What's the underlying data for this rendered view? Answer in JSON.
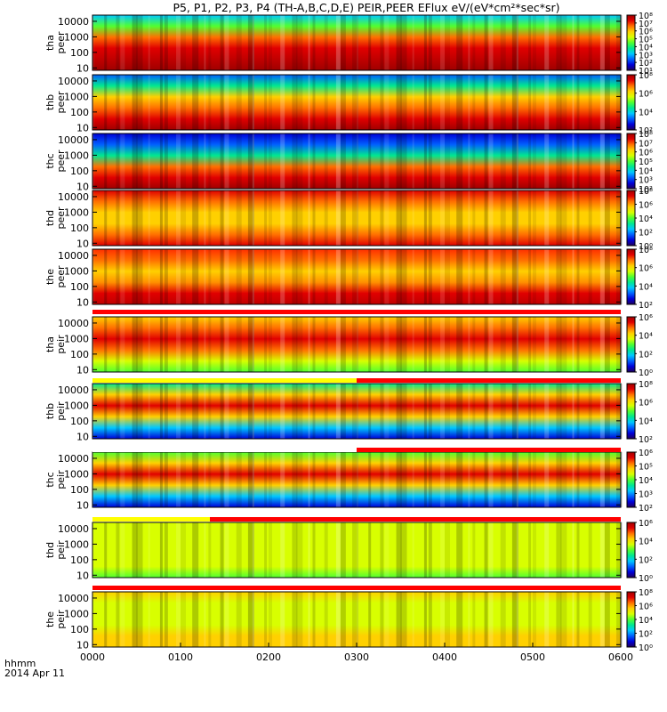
{
  "chart_data": {
    "type": "heatmap",
    "title": "P5, P1, P2, P3, P4 (TH-A,B,C,D,E) PEIR,PEER EFlux eV/(eV*cm²*sec*sr)",
    "xlabel": "hhmm",
    "date_label": "2014 Apr 11",
    "x_ticks": [
      "0000",
      "0100",
      "0200",
      "0300",
      "0400",
      "0500",
      "0600"
    ],
    "x_range_min": [
      0,
      360
    ],
    "y_scale": "log",
    "y_range_eV": [
      7,
      25000
    ],
    "y_ticks": [
      "10",
      "100",
      "1000",
      "10000"
    ],
    "panels": [
      {
        "probe": "tha",
        "species": "peer",
        "cbar": [
          "10¹",
          "10²",
          "10³",
          "10⁴",
          "10⁵",
          "10⁶",
          "10⁷",
          "10⁸"
        ]
      },
      {
        "probe": "thb",
        "species": "peer",
        "cbar": [
          "10²",
          "10⁴",
          "10⁶",
          "10⁸"
        ]
      },
      {
        "probe": "thc",
        "species": "peer",
        "cbar": [
          "10²",
          "10³",
          "10⁴",
          "10⁵",
          "10⁶",
          "10⁷",
          "10⁸"
        ]
      },
      {
        "probe": "thd",
        "species": "peer",
        "cbar": [
          "10⁰",
          "10²",
          "10⁴",
          "10⁶",
          "10⁸"
        ]
      },
      {
        "probe": "the",
        "species": "peer",
        "cbar": [
          "10²",
          "10⁴",
          "10⁶",
          "10⁸"
        ]
      },
      {
        "probe": "tha",
        "species": "peir",
        "cbar": [
          "10⁰",
          "10²",
          "10⁴",
          "10⁶"
        ]
      },
      {
        "probe": "thb",
        "species": "peir",
        "cbar": [
          "10²",
          "10⁴",
          "10⁶",
          "10⁸"
        ]
      },
      {
        "probe": "thc",
        "species": "peir",
        "cbar": [
          "10²",
          "10³",
          "10⁴",
          "10⁵",
          "10⁶"
        ]
      },
      {
        "probe": "thd",
        "species": "peir",
        "cbar": [
          "10⁰",
          "10²",
          "10⁴",
          "10⁶"
        ]
      },
      {
        "probe": "the",
        "species": "peir",
        "cbar": [
          "10⁰",
          "10²",
          "10⁴",
          "10⁶",
          "10⁸"
        ]
      }
    ],
    "mode_bars": [
      {
        "above_panel": 5,
        "segments": [
          {
            "color": "#ff0000",
            "from": 0,
            "to": 360
          }
        ]
      },
      {
        "above_panel": 6,
        "segments": [
          {
            "color": "#ffff00",
            "from": 0,
            "to": 180
          },
          {
            "color": "#ff0000",
            "from": 180,
            "to": 360
          }
        ]
      },
      {
        "above_panel": 7,
        "segments": [
          {
            "color": "#ffffff",
            "from": 0,
            "to": 180
          },
          {
            "color": "#ff0000",
            "from": 180,
            "to": 360
          }
        ]
      },
      {
        "above_panel": 8,
        "segments": [
          {
            "color": "#ffff00",
            "from": 0,
            "to": 80
          },
          {
            "color": "#ff0000",
            "from": 80,
            "to": 360
          }
        ]
      },
      {
        "above_panel": 9,
        "segments": [
          {
            "color": "#ff0000",
            "from": 0,
            "to": 360
          }
        ]
      }
    ],
    "colormap": [
      "#20005a",
      "#0000d8",
      "#0060ff",
      "#00c8ff",
      "#00e890",
      "#50ff30",
      "#d8ff00",
      "#ffd000",
      "#ff7000",
      "#e00000",
      "#a00000"
    ]
  }
}
